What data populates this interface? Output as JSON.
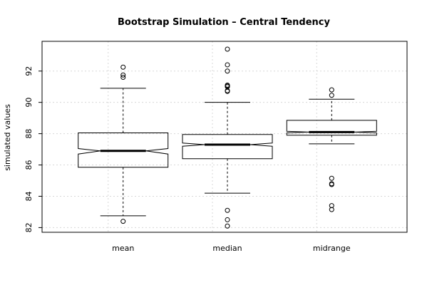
{
  "chart_data": {
    "type": "boxplot",
    "title": "Bootstrap Simulation – Central Tendency",
    "xlabel": "",
    "ylabel": "simulated values",
    "categories": [
      "mean",
      "median",
      "midrange"
    ],
    "ylim": [
      81.7,
      93.9
    ],
    "yticks": [
      82,
      84,
      86,
      88,
      90,
      92
    ],
    "notched": true,
    "grid": true,
    "boxes": [
      {
        "name": "mean",
        "whisker_low": 82.75,
        "q1": 85.85,
        "median": 86.9,
        "q3": 88.05,
        "whisker_high": 90.9,
        "notch_low": 86.7,
        "notch_high": 87.05,
        "outliers": [
          82.4,
          91.6,
          91.75,
          92.25
        ]
      },
      {
        "name": "median",
        "whisker_low": 84.2,
        "q1": 86.4,
        "median": 87.3,
        "q3": 87.95,
        "whisker_high": 90.0,
        "notch_low": 87.2,
        "notch_high": 87.4,
        "outliers": [
          82.1,
          82.5,
          83.1,
          90.7,
          90.75,
          91.0,
          91.05,
          91.1,
          92.0,
          92.4,
          93.4
        ]
      },
      {
        "name": "midrange",
        "whisker_low": 87.35,
        "q1": 87.9,
        "median": 88.1,
        "q3": 88.85,
        "whisker_high": 90.2,
        "notch_low": 88.05,
        "notch_high": 88.15,
        "outliers": [
          83.15,
          83.4,
          84.75,
          84.8,
          85.15,
          90.45,
          90.8
        ]
      }
    ]
  }
}
